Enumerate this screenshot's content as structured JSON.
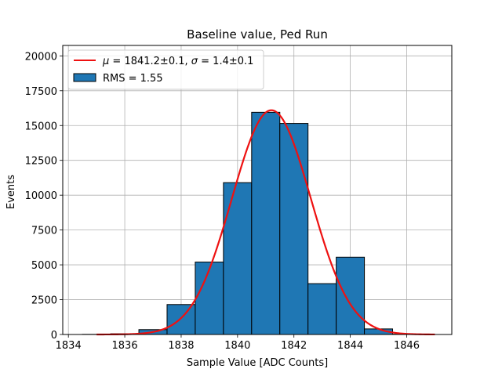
{
  "chart_data": {
    "type": "bar",
    "title": "Baseline value, Ped Run",
    "xlabel": "Sample Value [ADC Counts]",
    "ylabel": "Events",
    "xlim": [
      1833.8,
      1847.6
    ],
    "ylim": [
      0,
      20750
    ],
    "xticks": [
      1834,
      1836,
      1838,
      1840,
      1842,
      1844,
      1846
    ],
    "yticks": [
      0,
      2500,
      5000,
      7500,
      10000,
      12500,
      15000,
      17500,
      20000
    ],
    "xtick_labels": [
      "1834",
      "1836",
      "1838",
      "1840",
      "1842",
      "1844",
      "1846"
    ],
    "ytick_labels": [
      "0",
      "2500",
      "5000",
      "7500",
      "10000",
      "12500",
      "15000",
      "17500",
      "20000"
    ],
    "grid": true,
    "legend_placement": "top-left",
    "histogram": {
      "name": "RMS = 1.55",
      "bin_edges": [
        1834.5,
        1835.5,
        1836.5,
        1837.5,
        1838.5,
        1839.5,
        1840.5,
        1841.5,
        1842.5,
        1843.5,
        1844.5,
        1845.5,
        1846.5
      ],
      "counts": [
        10,
        50,
        350,
        2150,
        5200,
        10900,
        15950,
        15150,
        3650,
        5550,
        400,
        20
      ],
      "color": "#1f77b4",
      "edgecolor": "#000000"
    },
    "fit": {
      "name": "μ = 1841.2±0.1, σ = 1.4±0.1",
      "name_parts": {
        "mu_symbol": "μ",
        "mu_text": " = 1841.2±0.1, ",
        "sigma_symbol": "σ",
        "sigma_text": " = 1.4±0.1"
      },
      "mu": 1841.2,
      "sigma": 1.4,
      "amplitude": 16100,
      "x_range": [
        1835,
        1847
      ],
      "color": "#ee1111"
    }
  }
}
